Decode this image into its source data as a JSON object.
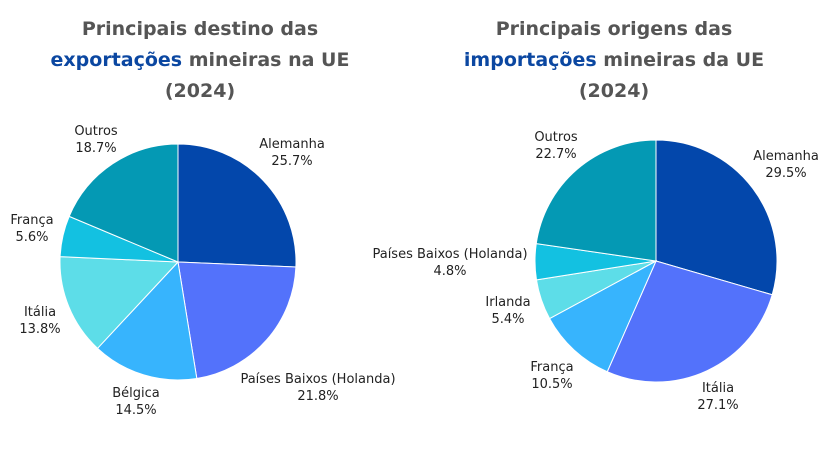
{
  "chart_data": [
    {
      "type": "pie",
      "title": {
        "line1": "Principais destino das",
        "line2_highlight": "exportações",
        "line2_rest": " mineiras na UE",
        "line3": "(2024)"
      },
      "slices": [
        {
          "label": "Alemanha",
          "value": 25.7,
          "value_text": "25.7%",
          "color": "#0347ab"
        },
        {
          "label": "Países Baixos (Holanda)",
          "value": 21.8,
          "value_text": "21.8%",
          "color": "#5372fb"
        },
        {
          "label": "Bélgica",
          "value": 14.5,
          "value_text": "14.5%",
          "color": "#37b4fd"
        },
        {
          "label": "Itália",
          "value": 13.8,
          "value_text": "13.8%",
          "color": "#5ddde8"
        },
        {
          "label": "França",
          "value": 5.6,
          "value_text": "5.6%",
          "color": "#13c1e1"
        },
        {
          "label": "Outros",
          "value": 18.7,
          "value_text": "18.7%",
          "color": "#0499b4"
        }
      ]
    },
    {
      "type": "pie",
      "title": {
        "line1": "Principais origens das",
        "line2_highlight": "importações",
        "line2_rest": " mineiras da UE",
        "line3": "(2024)"
      },
      "slices": [
        {
          "label": "Alemanha",
          "value": 29.5,
          "value_text": "29.5%",
          "color": "#0347ab"
        },
        {
          "label": "Itália",
          "value": 27.1,
          "value_text": "27.1%",
          "color": "#5372fb"
        },
        {
          "label": "França",
          "value": 10.5,
          "value_text": "10.5%",
          "color": "#37b4fd"
        },
        {
          "label": "Irlanda",
          "value": 5.4,
          "value_text": "5.4%",
          "color": "#5ddde8"
        },
        {
          "label": "Países Baixos (Holanda)",
          "value": 4.8,
          "value_text": "4.8%",
          "color": "#13c1e1"
        },
        {
          "label": "Outros",
          "value": 22.7,
          "value_text": "22.7%",
          "color": "#0499b4"
        }
      ]
    }
  ]
}
